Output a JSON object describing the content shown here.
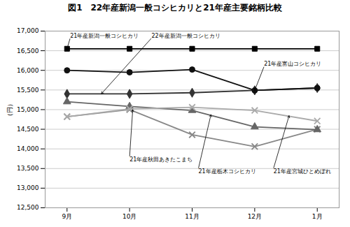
{
  "chart_data": {
    "type": "line",
    "title": "図1　22年産新潟一般コシヒカリと21年産主要銘柄比較",
    "ylabel": "（円）",
    "categories": [
      "9月",
      "10月",
      "11月",
      "12月",
      "1月"
    ],
    "ylim": [
      12500,
      17000
    ],
    "yticks": [
      {
        "value": 12500,
        "label": "12,500"
      },
      {
        "value": 13000,
        "label": "13,000"
      },
      {
        "value": 13500,
        "label": "13,500"
      },
      {
        "value": 14000,
        "label": "14,000"
      },
      {
        "value": 14500,
        "label": "14,500"
      },
      {
        "value": 15000,
        "label": "15,000"
      },
      {
        "value": 15500,
        "label": "15,500"
      },
      {
        "value": 16000,
        "label": "16,000"
      },
      {
        "value": 16500,
        "label": "16,500"
      },
      {
        "value": 17000,
        "label": "17,000"
      }
    ],
    "grid": true,
    "series": [
      {
        "name": "21年産新潟一般コシヒカリ",
        "color": "#000000",
        "marker": "square",
        "line_style": "solid",
        "values": [
          16550,
          16550,
          16550,
          16550,
          16550
        ]
      },
      {
        "name": "22年産新潟一般コシヒカリ",
        "color": "#333333",
        "marker": "diamond",
        "line_style": "solid",
        "values": [
          15400,
          15400,
          15430,
          15490,
          15550
        ]
      },
      {
        "name": "21年産富山コシヒカリ",
        "color": "#111111",
        "marker": "circle",
        "line_style": "solid",
        "values": [
          16000,
          15950,
          16020,
          15490,
          15550
        ]
      },
      {
        "name": "21年産秋田あきたこまち",
        "color": "#888888",
        "marker": "x",
        "line_style": "solid",
        "values": [
          14820,
          15000,
          14360,
          14060,
          14500
        ]
      },
      {
        "name": "21年産栃木コシヒカリ",
        "color": "#666666",
        "marker": "triangle",
        "line_style": "solid",
        "values": [
          15200,
          15080,
          14980,
          14560,
          14490
        ]
      },
      {
        "name": "21年産宮城ひとめぼれ",
        "color": "#aaaaaa",
        "marker": "x",
        "line_style": "solid",
        "values": [
          14820,
          15020,
          15060,
          14980,
          14710
        ]
      }
    ],
    "annotations": [
      {
        "text": "21年産新潟一般コシヒカリ",
        "x": 0.0,
        "y": 16550,
        "text_x": 0.05,
        "text_y": 16820
      },
      {
        "text": "22年産新潟一般コシヒカリ",
        "x": 0.55,
        "y": 15405,
        "text_x": 1.35,
        "text_y": 16820
      },
      {
        "text": "21年産富山コシヒカリ",
        "x": 3.0,
        "y": 15490,
        "text_x": 3.15,
        "text_y": 16100
      },
      {
        "text": "21年産秋田あきたこまち",
        "x": 1.05,
        "y": 15000,
        "text_x": 1.0,
        "text_y": 13800
      },
      {
        "text": "21年産栃木コシヒカリ",
        "x": 2.3,
        "y": 14870,
        "text_x": 2.1,
        "text_y": 13500
      },
      {
        "text": "21年産宮城ひとめぼれ",
        "x": 3.55,
        "y": 14845,
        "text_x": 3.3,
        "text_y": 13500
      }
    ]
  }
}
